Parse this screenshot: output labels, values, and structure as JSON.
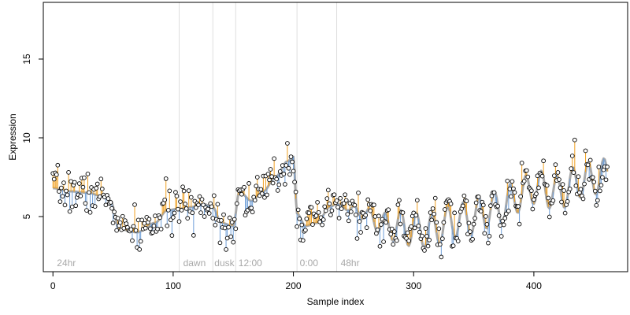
{
  "chart_data": {
    "type": "scatter",
    "title": "",
    "xlabel": "Sample index",
    "ylabel": "Expression",
    "xlim": [
      -8,
      478
    ],
    "ylim": [
      1.5,
      18.6
    ],
    "x_ticks": [
      "0",
      "100",
      "200",
      "300",
      "400"
    ],
    "x_tick_values": [
      0,
      100,
      200,
      300,
      400
    ],
    "y_ticks": [
      "5",
      "10",
      "15"
    ],
    "y_tick_values": [
      5,
      10,
      15
    ],
    "grid": false,
    "legend": "none",
    "colors": {
      "fit_line": "#a8a8a8",
      "above_fit": "#f0a020",
      "below_fit": "#6f9fd8",
      "point_fill": "#ffffff",
      "point_stroke": "#000000",
      "vline": "#dedede",
      "annotation": "#a8a8a8"
    },
    "vlines": [
      105,
      133,
      152,
      203,
      236
    ],
    "annotations": [
      {
        "x": 2,
        "text": "24hr"
      },
      {
        "x": 107,
        "text": "dawn"
      },
      {
        "x": 133,
        "text": "dusk"
      },
      {
        "x": 153,
        "text": "12:00"
      },
      {
        "x": 204,
        "text": "0:00"
      },
      {
        "x": 238,
        "text": "48hr"
      }
    ],
    "fit_anchors": {
      "x": [
        0,
        15,
        30,
        40,
        48,
        55,
        70,
        85,
        95,
        105,
        115,
        125,
        133,
        140,
        150,
        155,
        165,
        175,
        185,
        195,
        200,
        203,
        210,
        220,
        230,
        236,
        250,
        280,
        310,
        340,
        370,
        390,
        400,
        420,
        440,
        460
      ],
      "y": [
        6.8,
        6.6,
        6.5,
        6.3,
        6.0,
        4.2,
        4.0,
        4.6,
        5.4,
        5.5,
        5.6,
        5.8,
        5.6,
        4.6,
        4.4,
        6.6,
        6.0,
        6.6,
        7.5,
        8.5,
        8.8,
        5.2,
        4.4,
        4.6,
        5.6,
        5.8,
        5.4,
        4.4,
        4.1,
        4.8,
        5.5,
        6.4,
        6.9,
        6.5,
        7.3,
        7.6
      ]
    },
    "oscillation": {
      "period": 13,
      "ramp_start": 238,
      "ramp_end": 290,
      "amplitude": 1.1
    },
    "n_points": 462,
    "noise_seed": 7,
    "noise_sd": 0.65
  }
}
